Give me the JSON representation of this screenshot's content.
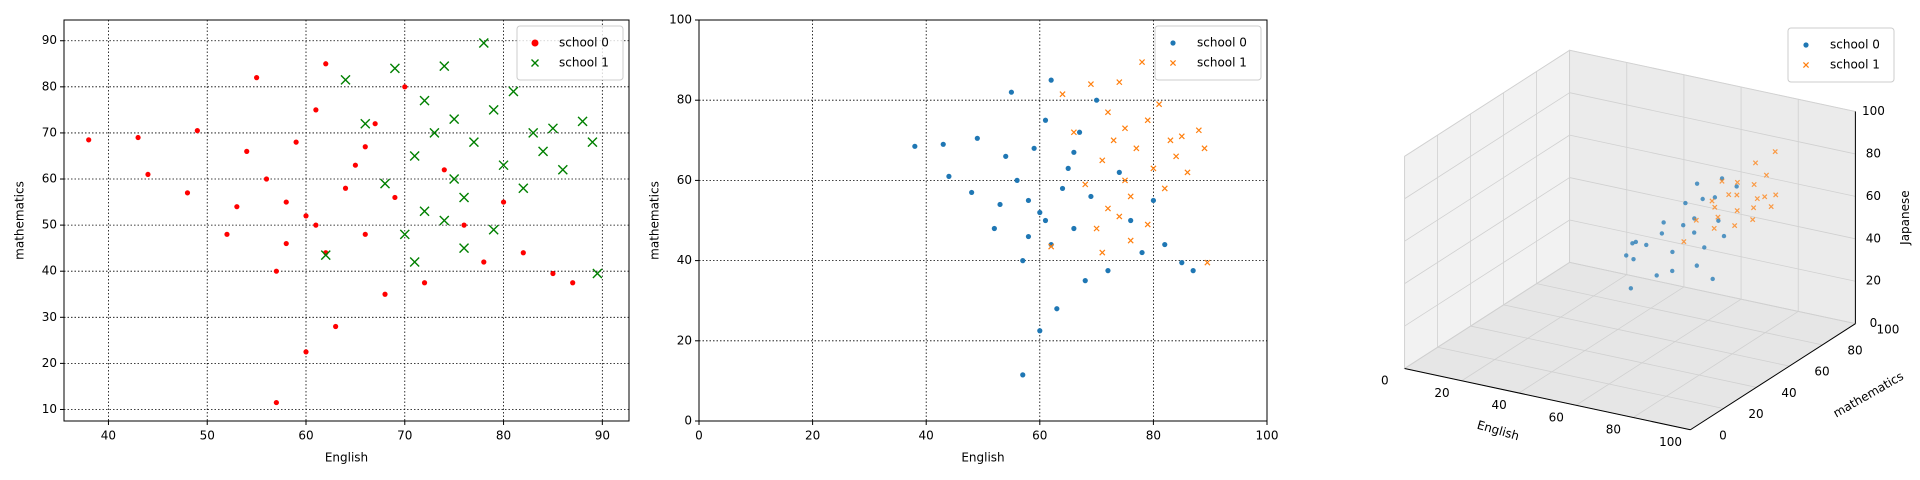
{
  "chart_data": [
    {
      "type": "scatter",
      "xlabel": "English",
      "ylabel": "mathematics",
      "xlim": [
        35.5,
        92.7
      ],
      "ylim": [
        7.5,
        94.5
      ],
      "xticks": [
        40,
        50,
        60,
        70,
        80,
        90
      ],
      "yticks": [
        10,
        20,
        30,
        40,
        50,
        60,
        70,
        80,
        90
      ],
      "grid": true,
      "legend": "upper right",
      "series": [
        {
          "name": "school 0",
          "color": "#ff0000",
          "marker": "o",
          "x": [
            38,
            43,
            44,
            48,
            49,
            52,
            53,
            55,
            56,
            57,
            57,
            58,
            59,
            60,
            60,
            61,
            62,
            62,
            63,
            64,
            65,
            66,
            67,
            68,
            69,
            70,
            72,
            74,
            76,
            78,
            80,
            82,
            85,
            87,
            54,
            58,
            61,
            66
          ],
          "y": [
            68.5,
            69,
            61,
            57,
            70.5,
            48,
            54,
            82,
            60,
            11.5,
            40,
            46,
            68,
            22.5,
            52,
            75,
            85,
            44,
            28,
            58,
            63,
            48,
            72,
            35,
            56,
            80,
            37.5,
            62,
            50,
            42,
            55,
            44,
            39.5,
            37.5,
            66,
            55,
            50,
            67
          ]
        },
        {
          "name": "school 1",
          "color": "#008000",
          "marker": "x",
          "x": [
            62,
            64,
            66,
            68,
            69,
            70,
            71,
            72,
            72,
            73,
            74,
            75,
            75,
            76,
            77,
            78,
            79,
            79,
            80,
            81,
            82,
            83,
            84,
            85,
            86,
            88,
            89,
            89.5,
            76,
            71,
            74
          ],
          "y": [
            43.5,
            81.5,
            72,
            59,
            84,
            48,
            65,
            77,
            53,
            70,
            84.5,
            60,
            73,
            56,
            68,
            89.5,
            75,
            49,
            63,
            79,
            58,
            70,
            66,
            71,
            62,
            72.5,
            68,
            39.5,
            45,
            42,
            51
          ]
        }
      ]
    },
    {
      "type": "scatter",
      "xlabel": "English",
      "ylabel": "mathematics",
      "xlim": [
        0,
        100
      ],
      "ylim": [
        0,
        100
      ],
      "xticks": [
        0,
        20,
        40,
        60,
        80,
        100
      ],
      "yticks": [
        0,
        20,
        40,
        60,
        80,
        100
      ],
      "grid": true,
      "legend": "upper right",
      "series": [
        {
          "name": "school 0",
          "color": "#1f77b4",
          "marker": "o",
          "x": [
            38,
            43,
            44,
            48,
            49,
            52,
            53,
            55,
            56,
            57,
            57,
            58,
            59,
            60,
            60,
            61,
            62,
            62,
            63,
            64,
            65,
            66,
            67,
            68,
            69,
            70,
            72,
            74,
            76,
            78,
            80,
            82,
            85,
            87,
            54,
            58,
            61,
            66
          ],
          "y": [
            68.5,
            69,
            61,
            57,
            70.5,
            48,
            54,
            82,
            60,
            11.5,
            40,
            46,
            68,
            22.5,
            52,
            75,
            85,
            44,
            28,
            58,
            63,
            48,
            72,
            35,
            56,
            80,
            37.5,
            62,
            50,
            42,
            55,
            44,
            39.5,
            37.5,
            66,
            55,
            50,
            67
          ]
        },
        {
          "name": "school 1",
          "color": "#ff7f0e",
          "marker": "x",
          "x": [
            62,
            64,
            66,
            68,
            69,
            70,
            71,
            72,
            72,
            73,
            74,
            75,
            75,
            76,
            77,
            78,
            79,
            79,
            80,
            81,
            82,
            83,
            84,
            85,
            86,
            88,
            89,
            89.5,
            76,
            71,
            74
          ],
          "y": [
            43.5,
            81.5,
            72,
            59,
            84,
            48,
            65,
            77,
            53,
            70,
            84.5,
            60,
            73,
            56,
            68,
            89.5,
            75,
            49,
            63,
            79,
            58,
            70,
            66,
            71,
            62,
            72.5,
            68,
            39.5,
            45,
            42,
            51
          ]
        }
      ]
    },
    {
      "type": "scatter3d",
      "xlabel": "English",
      "ylabel": "mathematics",
      "zlabel": "Japanese",
      "xlim": [
        0,
        100
      ],
      "ylim": [
        0,
        100
      ],
      "zlim": [
        0,
        100
      ],
      "xticks": [
        0,
        20,
        40,
        60,
        80,
        100
      ],
      "yticks": [
        0,
        20,
        40,
        60,
        80,
        100
      ],
      "zticks": [
        0,
        20,
        40,
        60,
        80,
        100
      ],
      "grid": true,
      "legend": "upper right",
      "series": [
        {
          "name": "school 0",
          "color": "#1f77b4",
          "marker": "o",
          "x": [
            38,
            48,
            52,
            55,
            57,
            58,
            60,
            61,
            62,
            63,
            64,
            65,
            66,
            67,
            68,
            69,
            70,
            72,
            74,
            76,
            78,
            80,
            85,
            56,
            59
          ],
          "y": [
            68.5,
            57,
            48,
            82,
            40,
            46,
            52,
            75,
            85,
            28,
            58,
            63,
            48,
            72,
            35,
            56,
            80,
            37.5,
            62,
            50,
            42,
            55,
            39.5,
            60,
            68
          ],
          "z": [
            30,
            45,
            50,
            62,
            48,
            52,
            55,
            60,
            65,
            42,
            57,
            58,
            50,
            64,
            46,
            56,
            66,
            48,
            60,
            54,
            50,
            58,
            47,
            55,
            61
          ]
        },
        {
          "name": "school 1",
          "color": "#ff7f0e",
          "marker": "x",
          "x": [
            64,
            66,
            68,
            70,
            71,
            72,
            73,
            74,
            75,
            76,
            77,
            78,
            79,
            80,
            81,
            82,
            83,
            84,
            85,
            86,
            88,
            89
          ],
          "y": [
            81.5,
            72,
            59,
            48,
            65,
            77,
            70,
            84.5,
            60,
            56,
            68,
            89.5,
            75,
            63,
            79,
            58,
            70,
            66,
            71,
            62,
            72.5,
            68
          ],
          "z": [
            66,
            62,
            60,
            56,
            64,
            70,
            68,
            76,
            63,
            60,
            70,
            80,
            72,
            66,
            75,
            62,
            69,
            67,
            70,
            64,
            71,
            68
          ]
        }
      ]
    }
  ]
}
